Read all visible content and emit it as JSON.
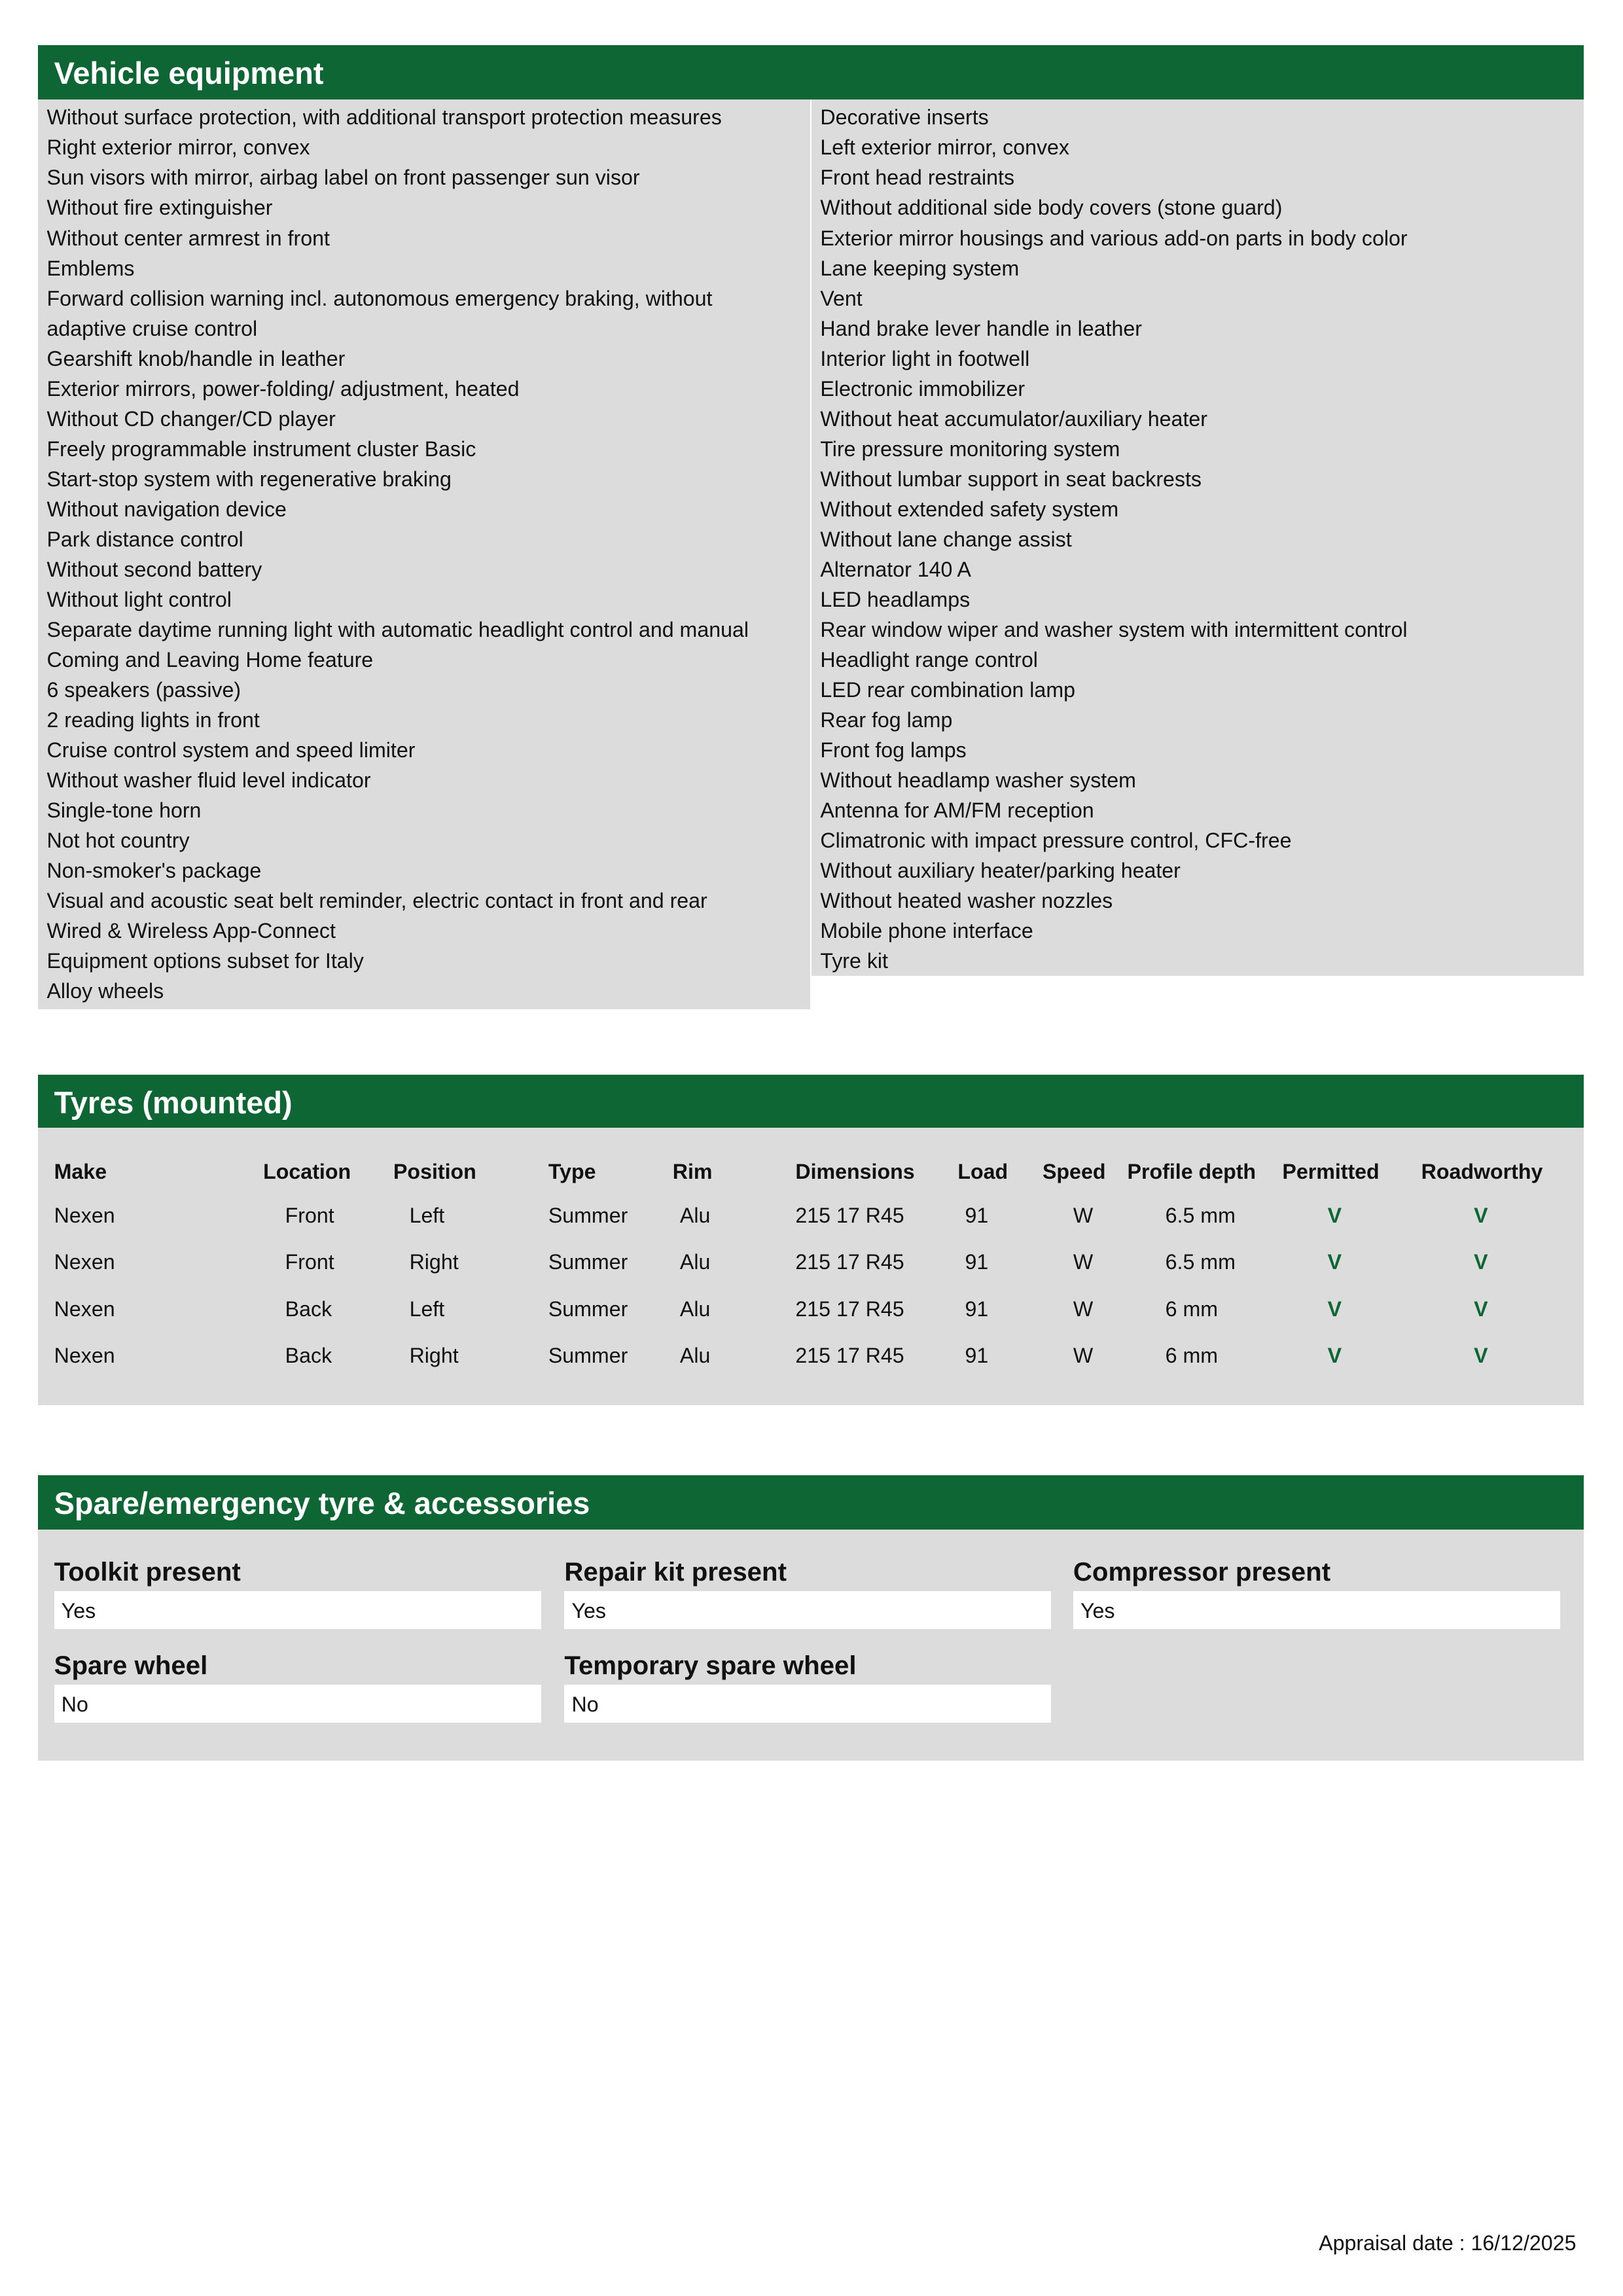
{
  "vehicle_equipment": {
    "title": "Vehicle equipment",
    "left": [
      "Without surface protection, with additional transport protection measures",
      "Right exterior mirror, convex",
      "Sun visors with mirror, airbag label on front passenger sun visor",
      "Without fire extinguisher",
      "Without center armrest in front",
      "Emblems",
      "Forward collision warning incl. autonomous emergency braking, without adaptive cruise control",
      "Gearshift knob/handle in leather",
      "Exterior mirrors, power-folding/ adjustment, heated",
      "Without CD changer/CD player",
      "Freely programmable instrument cluster Basic",
      "Start-stop system with regenerative braking",
      "Without navigation device",
      "Park distance control",
      "Without second battery",
      "Without light control",
      "Separate daytime running light with automatic headlight control and manual",
      "Coming and Leaving Home feature",
      "6 speakers (passive)",
      "2 reading lights in front",
      "Cruise control system and speed limiter",
      "Without washer fluid level indicator",
      "Single-tone horn",
      "Not hot country",
      "Non-smoker's package",
      "Visual and acoustic seat belt reminder, electric contact in front and rear",
      "Wired & Wireless App-Connect",
      "Equipment options subset for Italy",
      "Alloy wheels"
    ],
    "right": [
      "Decorative inserts",
      "Left exterior mirror, convex",
      "Front head restraints",
      "Without additional side body covers (stone guard)",
      "Exterior mirror housings and various add-on parts in body color",
      "Lane keeping system",
      "Vent",
      "Hand brake lever handle in leather",
      "Interior light in footwell",
      "Electronic immobilizer",
      "Without heat accumulator/auxiliary heater",
      "Tire pressure monitoring system",
      "Without lumbar support in seat backrests",
      "Without extended safety system",
      "Without lane change assist",
      "Alternator 140 A",
      "LED headlamps",
      "Rear window wiper and washer system with intermittent control",
      "Headlight range control",
      "LED rear combination lamp",
      "Rear fog lamp",
      "Front fog lamps",
      "Without headlamp washer system",
      "Antenna for AM/FM reception",
      "Climatronic with impact pressure control, CFC-free",
      "Without auxiliary heater/parking heater",
      "Without heated washer nozzles",
      "Mobile phone interface",
      "Tyre kit"
    ]
  },
  "tyres": {
    "title": "Tyres (mounted)",
    "headers": [
      "Make",
      "Location",
      "Position",
      "Type",
      "Rim",
      "Dimensions",
      "Load",
      "Speed",
      "Profile depth",
      "Permitted",
      "Roadworthy"
    ],
    "rows": [
      [
        "Nexen",
        "Front",
        "Left",
        "Summer",
        "Alu",
        "215 17 R45",
        "91",
        "W",
        "6.5 mm",
        "V",
        "V"
      ],
      [
        "Nexen",
        "Front",
        "Right",
        "Summer",
        "Alu",
        "215 17 R45",
        "91",
        "W",
        "6.5 mm",
        "V",
        "V"
      ],
      [
        "Nexen",
        "Back",
        "Left",
        "Summer",
        "Alu",
        "215 17 R45",
        "91",
        "W",
        "6 mm",
        "V",
        "V"
      ],
      [
        "Nexen",
        "Back",
        "Right",
        "Summer",
        "Alu",
        "215 17 R45",
        "91",
        "W",
        "6 mm",
        "V",
        "V"
      ]
    ]
  },
  "spare": {
    "title": "Spare/emergency tyre & accessories",
    "fields": [
      {
        "label": "Toolkit present",
        "value": "Yes"
      },
      {
        "label": "Repair kit present",
        "value": "Yes"
      },
      {
        "label": "Compressor present",
        "value": "Yes"
      },
      {
        "label": "Spare wheel",
        "value": "No"
      },
      {
        "label": "Temporary spare wheel",
        "value": "No"
      }
    ]
  },
  "footer": {
    "appraisal_date": "Appraisal date : 16/12/2025"
  },
  "colors": {
    "header_green": "#0e6634",
    "panel_grey": "#dcdcdc",
    "check_green": "#0e6634"
  }
}
